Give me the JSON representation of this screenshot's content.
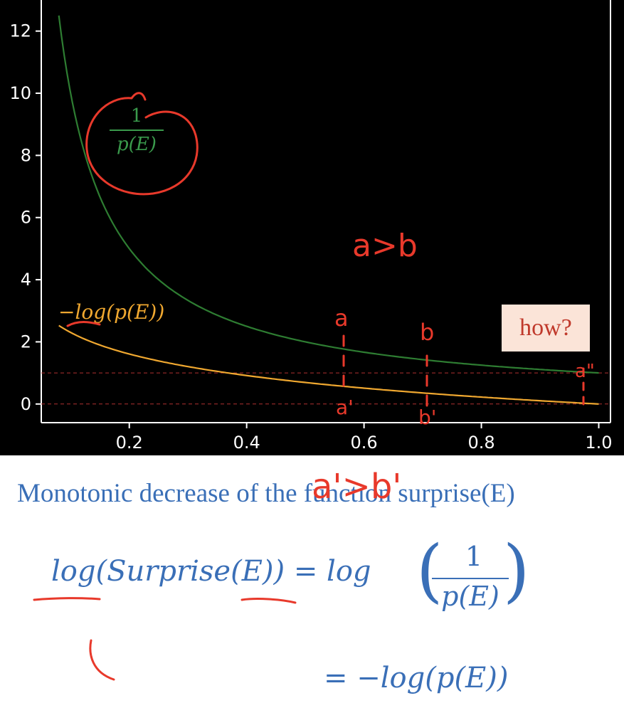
{
  "chart_data": {
    "type": "line",
    "xlim": [
      0.05,
      1.02
    ],
    "ylim": [
      -0.6,
      13.0
    ],
    "x_ticks": [
      "0.2",
      "0.4",
      "0.6",
      "0.8",
      "1.0"
    ],
    "x_tick_values": [
      0.2,
      0.4,
      0.6,
      0.8,
      1.0
    ],
    "y_ticks": [
      "0",
      "2",
      "4",
      "6",
      "8",
      "10",
      "12"
    ],
    "y_tick_values": [
      0,
      2,
      4,
      6,
      8,
      10,
      12
    ],
    "x_range": [
      0.08,
      1.0
    ],
    "series": [
      {
        "name": "1/p(E)",
        "function": "reciprocal",
        "color": "#2e7d32",
        "x": [
          0.08,
          0.1,
          0.15,
          0.2,
          0.3,
          0.4,
          0.5,
          0.6,
          0.7,
          0.8,
          0.9,
          1.0
        ],
        "y": [
          12.5,
          10.0,
          6.67,
          5.0,
          3.33,
          2.5,
          2.0,
          1.67,
          1.43,
          1.25,
          1.11,
          1.0
        ]
      },
      {
        "name": "-log(p(E))",
        "function": "neg-log",
        "color": "#f0a830",
        "x": [
          0.08,
          0.1,
          0.15,
          0.2,
          0.3,
          0.4,
          0.5,
          0.6,
          0.7,
          0.8,
          0.9,
          1.0
        ],
        "y": [
          2.53,
          2.3,
          1.9,
          1.61,
          1.2,
          0.92,
          0.69,
          0.51,
          0.36,
          0.22,
          0.11,
          0.0
        ]
      }
    ],
    "reference_lines": [
      {
        "y": 1,
        "color": "#b03030",
        "style": "dashed"
      },
      {
        "y": 0,
        "color": "#b03030",
        "style": "dashed"
      }
    ],
    "grid": false,
    "background": "#000000"
  },
  "labels": {
    "green_num": "1",
    "green_den": "p(E)",
    "orange": "−log(p(E))"
  },
  "annotations": {
    "a_gt_b": "a>b",
    "a": "a",
    "b": "b",
    "a_prime": "a'",
    "b_prime": "b'",
    "a_prime_gt_b_prime": "a'>b'",
    "a_double_prime": "a\"",
    "how": "how?",
    "ink_color": "#e8392b"
  },
  "caption": "Monotonic decrease of the function surprise(E)",
  "equation": {
    "lhs": "log(Surprise(E)) = log",
    "frac_num": "1",
    "frac_den": "p(E)",
    "line2": "= −log(p(E))",
    "color": "#3a6fb7"
  }
}
